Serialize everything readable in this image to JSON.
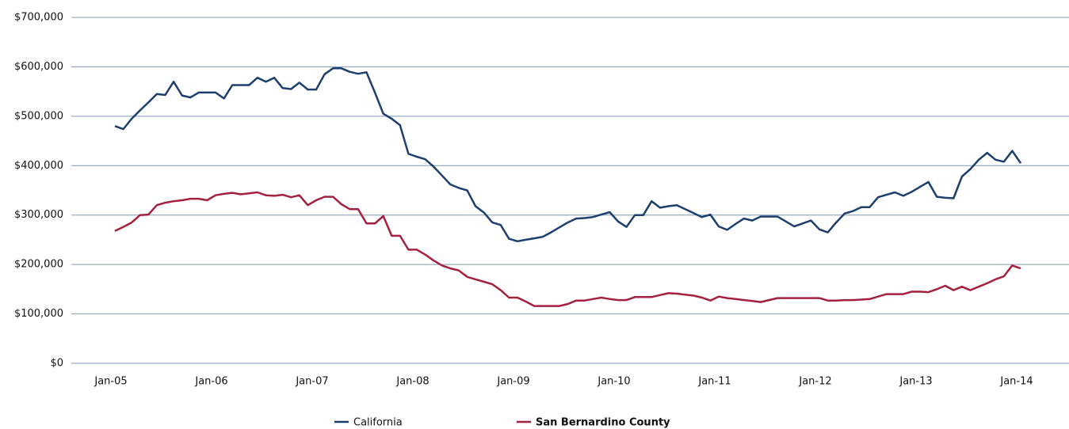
{
  "chart_data": {
    "type": "line",
    "categories": [
      "Jan-05",
      null,
      null,
      null,
      null,
      null,
      null,
      null,
      null,
      null,
      null,
      null,
      "Jan-06",
      null,
      null,
      null,
      null,
      null,
      null,
      null,
      null,
      null,
      null,
      null,
      "Jan-07",
      null,
      null,
      null,
      null,
      null,
      null,
      null,
      null,
      null,
      null,
      null,
      "Jan-08",
      null,
      null,
      null,
      null,
      null,
      null,
      null,
      null,
      null,
      null,
      null,
      "Jan-09",
      null,
      null,
      null,
      null,
      null,
      null,
      null,
      null,
      null,
      null,
      null,
      "Jan-10",
      null,
      null,
      null,
      null,
      null,
      null,
      null,
      null,
      null,
      null,
      null,
      "Jan-11",
      null,
      null,
      null,
      null,
      null,
      null,
      null,
      null,
      null,
      null,
      null,
      "Jan-12",
      null,
      null,
      null,
      null,
      null,
      null,
      null,
      null,
      null,
      null,
      null,
      "Jan-13",
      null,
      null,
      null,
      null,
      null,
      null,
      null,
      null,
      null,
      null,
      null,
      "Jan-14"
    ],
    "series": [
      {
        "name": "California",
        "color": "#1c3f6e",
        "values": [
          480000,
          474000,
          495000,
          512000,
          528000,
          545000,
          543000,
          570000,
          542000,
          538000,
          548000,
          548000,
          548000,
          536000,
          563000,
          563000,
          563000,
          578000,
          570000,
          578000,
          557000,
          555000,
          568000,
          554000,
          554000,
          585000,
          597000,
          597000,
          590000,
          586000,
          589000,
          548000,
          505000,
          495000,
          482000,
          424000,
          418000,
          413000,
          398000,
          380000,
          362000,
          355000,
          350000,
          318000,
          305000,
          285000,
          280000,
          252000,
          247000,
          250000,
          253000,
          256000,
          265000,
          275000,
          285000,
          293000,
          294000,
          296000,
          301000,
          306000,
          287000,
          276000,
          300000,
          300000,
          328000,
          315000,
          318000,
          320000,
          312000,
          304000,
          296000,
          301000,
          277000,
          270000,
          282000,
          293000,
          289000,
          297000,
          297000,
          297000,
          287000,
          277000,
          283000,
          289000,
          271000,
          265000,
          285000,
          303000,
          308000,
          316000,
          316000,
          336000,
          341000,
          346000,
          339000,
          347000,
          357000,
          367000,
          337000,
          335000,
          334000,
          378000,
          393000,
          412000,
          426000,
          412000,
          408000,
          430000,
          405000
        ]
      },
      {
        "name": "San Bernardino County",
        "color": "#a5203f",
        "values": [
          268000,
          276000,
          285000,
          300000,
          301000,
          320000,
          325000,
          328000,
          330000,
          333000,
          333000,
          330000,
          340000,
          343000,
          345000,
          342000,
          344000,
          346000,
          340000,
          339000,
          341000,
          336000,
          340000,
          320000,
          330000,
          337000,
          337000,
          322000,
          312000,
          312000,
          283000,
          283000,
          298000,
          258000,
          258000,
          230000,
          230000,
          220000,
          208000,
          198000,
          192000,
          188000,
          175000,
          170000,
          165000,
          160000,
          148000,
          133000,
          133000,
          125000,
          116000,
          116000,
          116000,
          116000,
          120000,
          127000,
          127000,
          130000,
          133000,
          130000,
          128000,
          128000,
          134000,
          134000,
          134000,
          138000,
          142000,
          141000,
          139000,
          137000,
          133000,
          127000,
          135000,
          132000,
          130000,
          128000,
          126000,
          124000,
          128000,
          132000,
          132000,
          132000,
          132000,
          132000,
          132000,
          127000,
          127000,
          128000,
          128000,
          129000,
          130000,
          135000,
          140000,
          140000,
          140000,
          145000,
          145000,
          144000,
          150000,
          157000,
          148000,
          155000,
          148000,
          155000,
          162000,
          170000,
          176000,
          198000,
          192000
        ]
      }
    ],
    "ylim": [
      0,
      700000
    ],
    "yticks": [
      {
        "value": 0,
        "label": "$0"
      },
      {
        "value": 100000,
        "label": "$100,000"
      },
      {
        "value": 200000,
        "label": "$200,000"
      },
      {
        "value": 300000,
        "label": "$300,000"
      },
      {
        "value": 400000,
        "label": "$400,000"
      },
      {
        "value": 500000,
        "label": "$500,000"
      },
      {
        "value": 600000,
        "label": "$600,000"
      },
      {
        "value": 700000,
        "label": "$700,000"
      }
    ],
    "grid": true,
    "legend": "bottom"
  }
}
